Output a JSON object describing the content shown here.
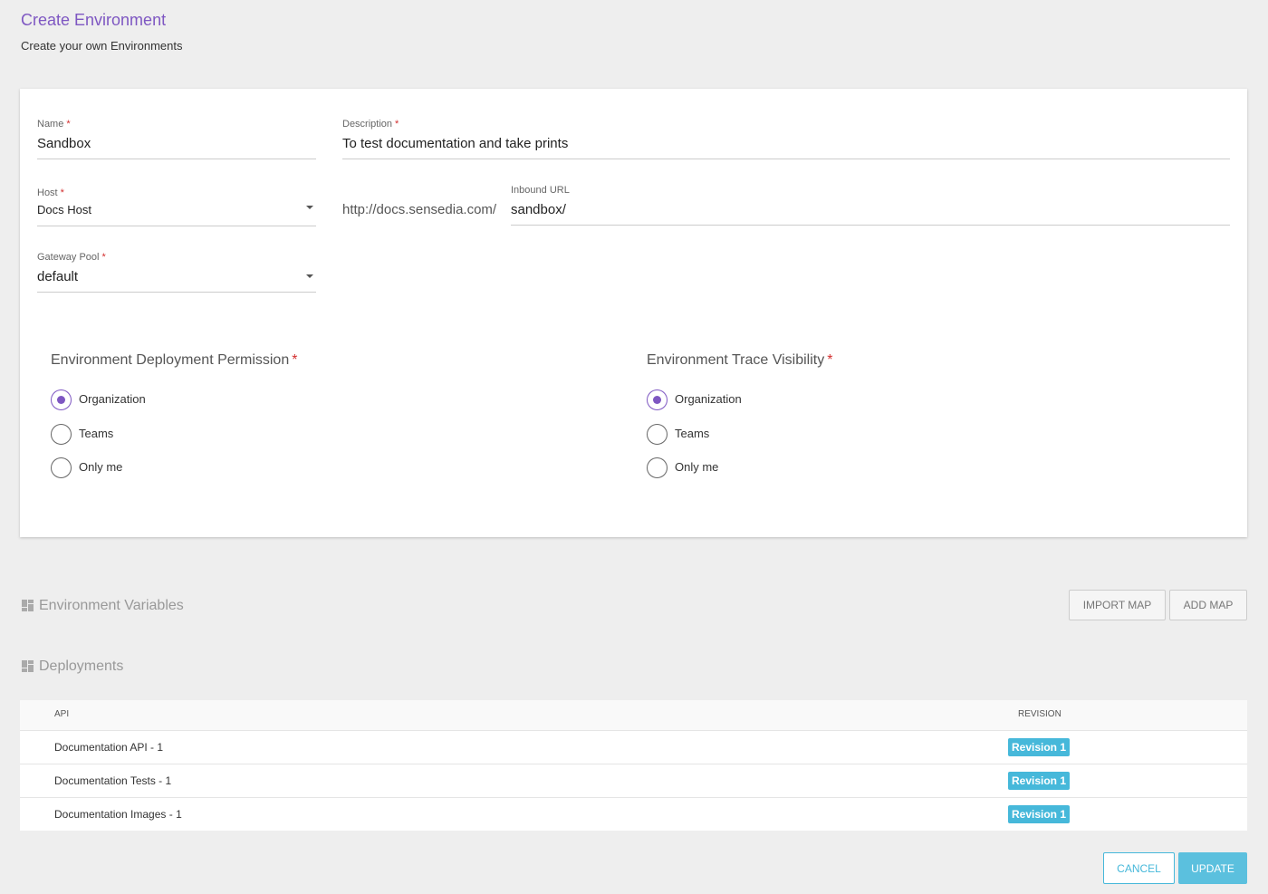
{
  "header": {
    "title": "Create Environment",
    "subtitle": "Create your own Environments"
  },
  "form": {
    "required_mark": "*",
    "name": {
      "label": "Name",
      "value": "Sandbox"
    },
    "description": {
      "label": "Description",
      "value": "To test documentation and take prints"
    },
    "host": {
      "label": "Host",
      "value": "Docs Host"
    },
    "inbound_url": {
      "prefix": "http://docs.sensedia.com/",
      "label": "Inbound URL",
      "value": "sandbox/"
    },
    "gateway_pool": {
      "label": "Gateway Pool",
      "value": "default"
    }
  },
  "radio_groups": [
    {
      "title": "Environment Deployment Permission",
      "options": [
        "Organization",
        "Teams",
        "Only me"
      ],
      "selected": 0
    },
    {
      "title": "Environment Trace Visibility",
      "options": [
        "Organization",
        "Teams",
        "Only me"
      ],
      "selected": 0
    }
  ],
  "environment_variables": {
    "title": "Environment Variables",
    "buttons": [
      "IMPORT MAP",
      "ADD MAP"
    ]
  },
  "deployments": {
    "title": "Deployments",
    "columns": [
      "API",
      "REVISION"
    ],
    "rows": [
      [
        "Documentation API - 1",
        "Revision 1"
      ],
      [
        "Documentation Tests - 1",
        "Revision 1"
      ],
      [
        "Documentation Images - 1",
        "Revision 1"
      ]
    ]
  },
  "footer": {
    "buttons": [
      "CANCEL",
      "UPDATE"
    ]
  }
}
